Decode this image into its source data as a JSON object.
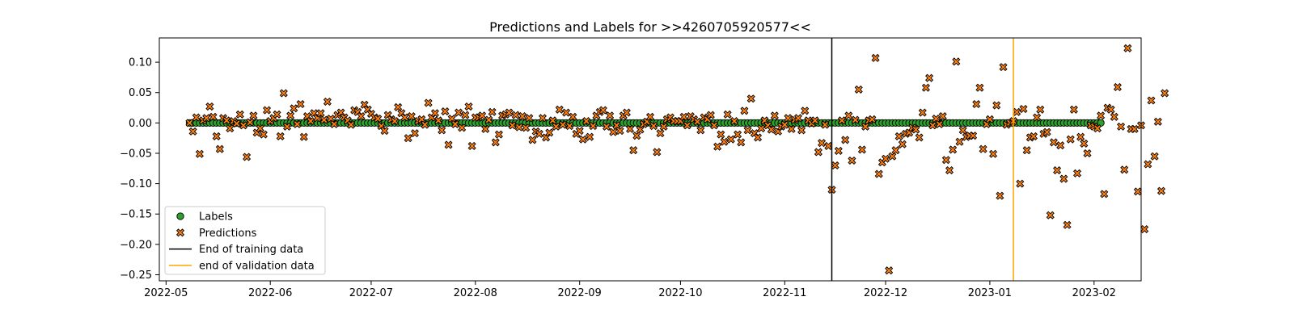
{
  "chart_data": {
    "type": "scatter",
    "title": "Predictions and Labels for >>4260705920577<<",
    "xlabel": "",
    "ylabel": "",
    "x_axis_type": "date",
    "xlim": [
      "2022-04-29",
      "2023-02-15"
    ],
    "ylim": [
      -0.26,
      0.14
    ],
    "x_ticks": [
      "2022-05-01",
      "2022-06-01",
      "2022-07-01",
      "2022-08-01",
      "2022-09-01",
      "2022-10-01",
      "2022-11-01",
      "2022-12-01",
      "2023-01-01",
      "2023-02-01"
    ],
    "x_tick_labels": [
      "2022-05",
      "2022-06",
      "2022-07",
      "2022-08",
      "2022-09",
      "2022-10",
      "2022-11",
      "2022-12",
      "2023-01",
      "2023-02"
    ],
    "y_ticks": [
      0.1,
      0.05,
      0.0,
      -0.05,
      -0.1,
      -0.15,
      -0.2,
      -0.25
    ],
    "y_tick_labels": [
      "0.10",
      "0.05",
      "0.00",
      "−0.05",
      "−0.10",
      "−0.15",
      "−0.20",
      "−0.25"
    ],
    "grid": false,
    "legend_position": "lower-left",
    "series": [
      {
        "name": "Labels",
        "marker": "circle",
        "color": "#2ca02c",
        "edge_color": "#000000",
        "x_start": "2022-05-08",
        "x_end": "2023-02-03",
        "step": "daily",
        "y_constant": 0.0
      },
      {
        "name": "Predictions",
        "marker": "x-filled",
        "color": "#ff7f0e",
        "edge_color": "#000000",
        "x_start": "2022-05-08",
        "step": "daily",
        "y": [
          0.0,
          -0.014,
          0.009,
          -0.051,
          0.004,
          0.008,
          0.027,
          0.01,
          -0.022,
          -0.043,
          0.008,
          0.004,
          -0.009,
          0.003,
          -0.001,
          0.014,
          -0.004,
          -0.056,
          0.001,
          0.012,
          -0.016,
          -0.009,
          -0.019,
          0.021,
          0.003,
          0.008,
          0.014,
          -0.022,
          0.049,
          -0.006,
          0.012,
          0.024,
          -0.002,
          0.031,
          -0.023,
          0.011,
          0.003,
          0.016,
          0.008,
          0.016,
          0.005,
          0.035,
          0.007,
          -0.002,
          0.013,
          0.017,
          0.009,
          0.004,
          -0.003,
          0.021,
          0.018,
          0.011,
          0.03,
          0.022,
          0.015,
          0.009,
          0.007,
          -0.005,
          -0.013,
          0.013,
          0.006,
          0.003,
          0.026,
          0.016,
          0.009,
          -0.025,
          0.011,
          -0.017,
          0.003,
          0.006,
          -0.003,
          0.033,
          0.009,
          0.016,
          0.004,
          -0.012,
          0.019,
          -0.036,
          0.007,
          -0.002,
          0.017,
          -0.008,
          0.013,
          0.027,
          -0.038,
          0.009,
          0.009,
          0.012,
          -0.01,
          0.005,
          0.018,
          -0.032,
          -0.019,
          0.012,
          0.014,
          0.017,
          -0.004,
          0.013,
          -0.007,
          0.011,
          -0.008,
          0.008,
          -0.028,
          -0.014,
          -0.018,
          0.008,
          -0.024,
          -0.016,
          0.004,
          -0.006,
          0.022,
          -0.003,
          0.017,
          -0.005,
          0.01,
          -0.018,
          -0.013,
          -0.027,
          0.003,
          -0.023,
          -0.005,
          0.012,
          0.018,
          0.021,
          -0.006,
          0.012,
          -0.015,
          -0.004,
          -0.013,
          0.012,
          0.017,
          -0.01,
          -0.045,
          -0.021,
          -0.011,
          -0.002,
          0.002,
          0.01,
          -0.005,
          -0.048,
          -0.017,
          -0.006,
          0.006,
          0.009,
          0.003,
          0.003,
          0.003,
          0.01,
          -0.004,
          0.011,
          0.006,
          0.002,
          -0.012,
          0.009,
          0.006,
          0.013,
          -0.004,
          -0.039,
          -0.019,
          -0.031,
          0.014,
          -0.027,
          0.003,
          -0.019,
          -0.032,
          0.02,
          -0.012,
          0.04,
          -0.017,
          -0.024,
          -0.009,
          0.004,
          -0.004,
          -0.011,
          0.012,
          -0.014,
          -0.006,
          -0.003,
          0.008,
          -0.01,
          0.005,
          0.008,
          -0.012,
          0.02,
          0.004,
          -0.001,
          0.004,
          -0.048,
          -0.033,
          -0.003,
          -0.038,
          -0.11,
          -0.07,
          -0.046,
          0.004,
          -0.028,
          0.012,
          -0.062,
          0.005,
          0.055,
          -0.044,
          -0.006,
          0.004,
          0.006,
          0.107,
          -0.084,
          -0.065,
          -0.059,
          -0.243,
          -0.055,
          -0.045,
          -0.022,
          -0.035,
          -0.018,
          -0.016,
          -0.008,
          -0.011,
          -0.024,
          0.017,
          0.058,
          0.074,
          -0.004,
          0.007,
          -0.002,
          0.011,
          -0.061,
          -0.078,
          -0.044,
          0.101,
          -0.031,
          -0.012,
          -0.023,
          -0.021,
          -0.021,
          0.031,
          0.058,
          -0.043,
          -0.002,
          0.006,
          -0.051,
          0.029,
          -0.12,
          0.092,
          -0.003,
          0.0,
          0.003,
          0.018,
          -0.1,
          0.023,
          -0.045,
          -0.024,
          -0.022,
          0.009,
          0.022,
          -0.018,
          -0.015,
          -0.152,
          -0.032,
          -0.078,
          -0.037,
          -0.092,
          -0.168,
          -0.027,
          0.022,
          -0.083,
          -0.023,
          -0.034,
          -0.05,
          -0.004,
          -0.006,
          -0.009,
          0.012,
          -0.117,
          0.025,
          0.022,
          0.01,
          0.059,
          -0.006,
          -0.077,
          0.123,
          -0.01,
          -0.01,
          -0.113,
          -0.004,
          -0.175,
          -0.068,
          0.037,
          -0.055,
          0.002,
          -0.112,
          0.049
        ]
      }
    ],
    "vertical_lines": [
      {
        "name": "End of training data",
        "x": "2022-11-15",
        "color": "#000000"
      },
      {
        "name": "end of validation data",
        "x": "2023-01-08",
        "color": "#ffa500"
      }
    ]
  }
}
